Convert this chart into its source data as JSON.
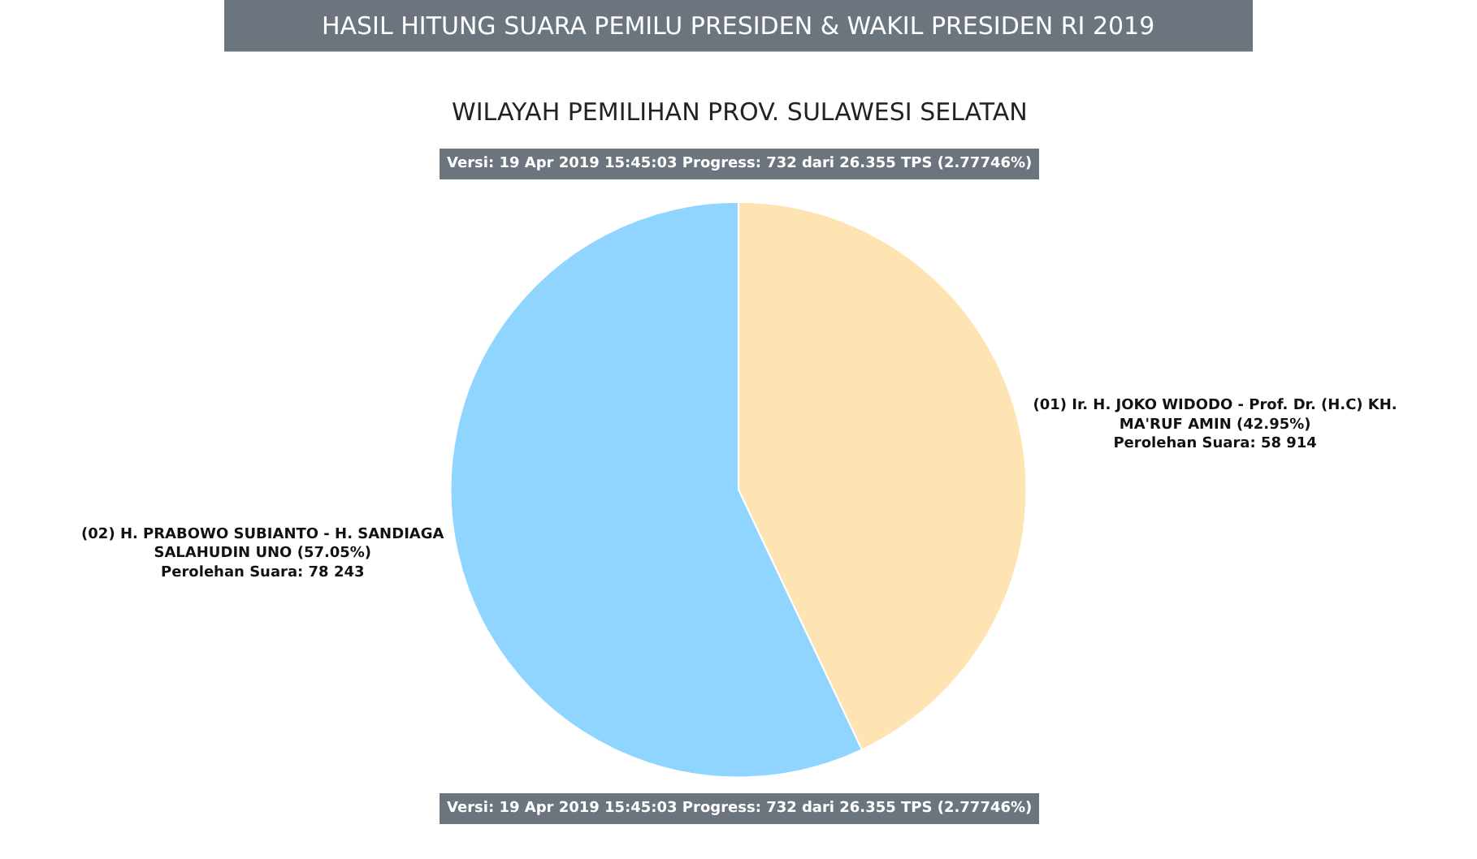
{
  "chart_data": {
    "type": "pie",
    "title": "HASIL HITUNG SUARA PEMILU PRESIDEN & WAKIL PRESIDEN RI 2019",
    "subtitle": "WILAYAH PEMILIHAN PROV. SULAWESI SELATAN",
    "categories": [
      "(01) Ir. H. JOKO WIDODO - Prof. Dr. (H.C) KH. MA'RUF AMIN",
      "(02) H. PRABOWO SUBIANTO - H. SANDIAGA SALAHUDIN UNO"
    ],
    "values": [
      58914,
      78243
    ],
    "colors": [
      "#ffe4b3",
      "#90d5ff"
    ],
    "value_labels": [
      "(42.95%)\nPerolehan Suara: 58 914",
      "(57.05%)\nPerolehan Suara: 78 243"
    ],
    "annotations": [
      "Versi: 19 Apr 2019 15:45:03 Progress: 732 dari 26.355 TPS (2.77746%)",
      "Versi: 19 Apr 2019 15:45:03 Progress: 732 dari 26.355 TPS (2.77746%)"
    ],
    "legend": false
  }
}
